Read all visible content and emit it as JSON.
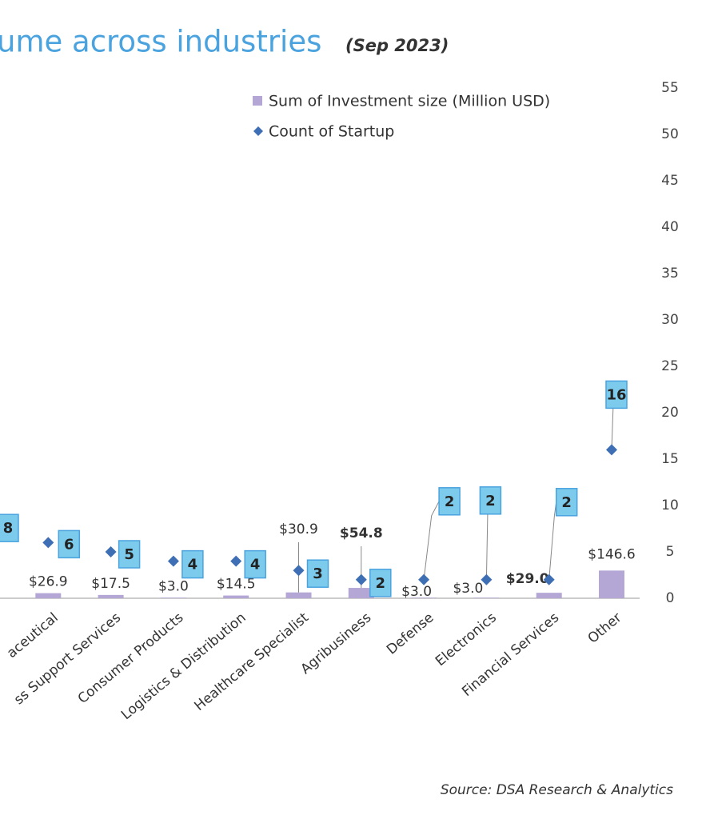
{
  "chart_data": {
    "type": "bar-scatter",
    "title": "ume across industries",
    "subtitle": "(Sep 2023)",
    "source": "Source: DSA Research & Analytics",
    "categories": [
      null,
      "aceutical",
      "ss Support Services",
      "Consumer Products",
      "Logistics & Distribution",
      "Healthcare Specialist",
      "Agribusiness",
      "Defense",
      "Electronics",
      "Financial Services",
      "Other"
    ],
    "series": [
      {
        "name": "Sum of Investment size (Million USD)",
        "color": "#b4a7d6",
        "kind": "bar",
        "values": [
          null,
          26.9,
          17.5,
          3.0,
          14.5,
          30.9,
          54.8,
          3.0,
          3.0,
          29.0,
          146.6
        ],
        "value_labels": [
          null,
          "$26.9",
          "$17.5",
          "$3.0",
          "$14.5",
          "$30.9",
          "$54.8",
          "$3.0",
          "$3.0",
          "$29.0",
          "$146.6"
        ]
      },
      {
        "name": "Count of Startup",
        "color": "#3e6fb4",
        "kind": "scatter",
        "axis": "y2",
        "values": [
          8,
          6,
          5,
          4,
          4,
          3,
          2,
          2,
          2,
          2,
          16
        ]
      }
    ],
    "ylim": [
      0,
      2700
    ],
    "y2lim": [
      0,
      55
    ],
    "y2ticks": [
      0,
      5,
      10,
      15,
      20,
      25,
      30,
      35,
      40,
      45,
      50,
      55
    ]
  }
}
